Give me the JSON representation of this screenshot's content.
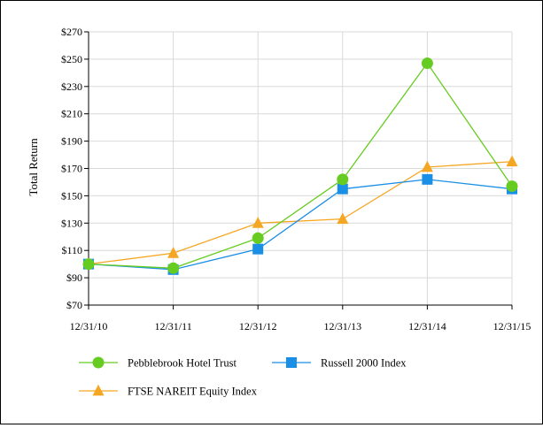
{
  "chart_data": {
    "type": "line",
    "title": "",
    "xlabel": "",
    "ylabel": "Total Return",
    "categories": [
      "12/31/10",
      "12/31/11",
      "12/31/12",
      "12/31/13",
      "12/31/14",
      "12/31/15"
    ],
    "y_ticks": [
      "$70",
      "$90",
      "$110",
      "$130",
      "$150",
      "$170",
      "$190",
      "$210",
      "$230",
      "$250",
      "$270"
    ],
    "y_tick_values": [
      70,
      90,
      110,
      130,
      150,
      170,
      190,
      210,
      230,
      250,
      270
    ],
    "ylim": [
      70,
      270
    ],
    "grid": true,
    "legend_position": "bottom",
    "series": [
      {
        "name": "Pebblebrook Hotel Trust",
        "values": [
          100,
          97,
          119,
          162,
          247,
          157
        ],
        "color": "#66cc22",
        "marker": "circle"
      },
      {
        "name": "Russell 2000 Index",
        "values": [
          100,
          96,
          111,
          155,
          162,
          155
        ],
        "color": "#1a8fe6",
        "marker": "square"
      },
      {
        "name": "FTSE NAREIT Equity Index",
        "values": [
          100,
          108,
          130,
          133,
          171,
          175
        ],
        "color": "#f5a623",
        "marker": "triangle"
      }
    ]
  }
}
